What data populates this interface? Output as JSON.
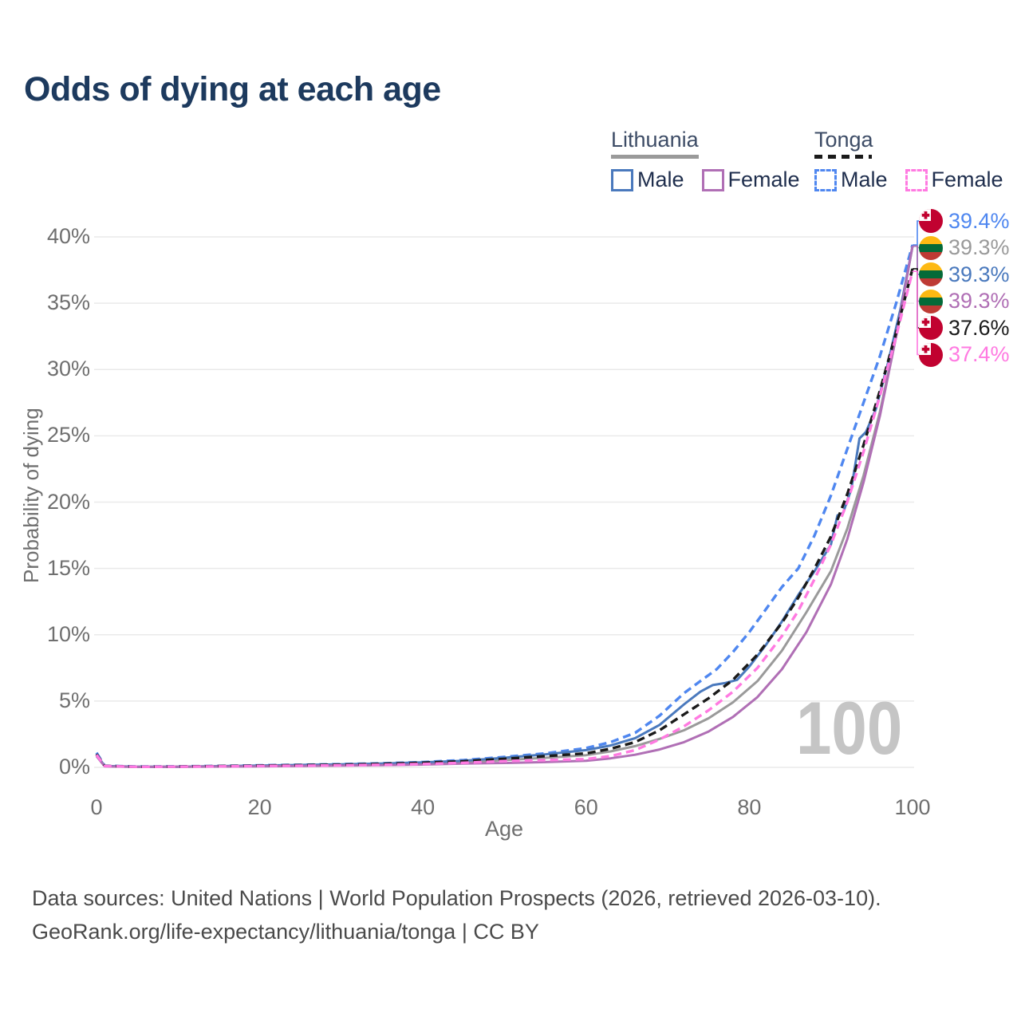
{
  "title": "Odds of dying at each age",
  "watermark": "100",
  "legend": {
    "groups": [
      {
        "country": "Lithuania",
        "line_style": "solid",
        "underline_color": "#9a9a9a",
        "items": [
          {
            "label": "Male",
            "color": "#4a79bd"
          },
          {
            "label": "Female",
            "color": "#b06fb5"
          }
        ]
      },
      {
        "country": "Tonga",
        "line_style": "dashed",
        "underline_color": "#1a1a1a",
        "items": [
          {
            "label": "Male",
            "color": "#4f87f0"
          },
          {
            "label": "Female",
            "color": "#ff7ae1"
          }
        ]
      }
    ]
  },
  "footer": {
    "line1": "Data sources: United Nations | World Population Prospects (2026, retrieved 2026-03-10).",
    "line2": "GeoRank.org/life-expectancy/lithuania/tonga | CC BY"
  },
  "chart_data": {
    "type": "line",
    "title": "Odds of dying at each age",
    "xlabel": "Age",
    "ylabel": "Probability of dying",
    "xlim": [
      0,
      100
    ],
    "ylim": [
      0,
      41.5
    ],
    "grid": "horizontal",
    "legend_position": "top-right",
    "x_ticks": [
      0,
      20,
      40,
      60,
      80,
      100
    ],
    "y_ticks": [
      {
        "value": 0,
        "label": "0%"
      },
      {
        "value": 5,
        "label": "5%"
      },
      {
        "value": 10,
        "label": "10%"
      },
      {
        "value": 15,
        "label": "15%"
      },
      {
        "value": 20,
        "label": "20%"
      },
      {
        "value": 25,
        "label": "25%"
      },
      {
        "value": 30,
        "label": "30%"
      },
      {
        "value": 35,
        "label": "35%"
      },
      {
        "value": 40,
        "label": "40%"
      }
    ],
    "hovered_age": "100",
    "series": [
      {
        "name": "Tonga Male",
        "country": "Tonga",
        "sex": "Male",
        "color": "#4f87f0",
        "dashed": true,
        "flag": "tonga",
        "end_label": "39.4%",
        "points": [
          [
            0,
            1.1
          ],
          [
            1,
            0.12
          ],
          [
            5,
            0.06
          ],
          [
            10,
            0.07
          ],
          [
            15,
            0.1
          ],
          [
            20,
            0.15
          ],
          [
            25,
            0.19
          ],
          [
            30,
            0.24
          ],
          [
            35,
            0.3
          ],
          [
            40,
            0.4
          ],
          [
            45,
            0.55
          ],
          [
            50,
            0.78
          ],
          [
            55,
            1.05
          ],
          [
            60,
            1.45
          ],
          [
            63,
            1.9
          ],
          [
            66,
            2.6
          ],
          [
            69,
            3.9
          ],
          [
            72,
            5.6
          ],
          [
            74,
            6.5
          ],
          [
            76,
            7.4
          ],
          [
            78,
            8.7
          ],
          [
            80,
            10.2
          ],
          [
            82,
            11.9
          ],
          [
            84,
            13.6
          ],
          [
            86,
            15.0
          ],
          [
            88,
            17.5
          ],
          [
            90,
            20.5
          ],
          [
            92,
            24.0
          ],
          [
            94,
            27.5
          ],
          [
            96,
            31.0
          ],
          [
            98,
            35.0
          ],
          [
            100,
            39.4
          ]
        ]
      },
      {
        "name": "Lithuania Both sexes",
        "country": "Lithuania",
        "sex": "Both",
        "color": "#9a9a9a",
        "dashed": false,
        "flag": "lithuania",
        "end_label": "39.3%",
        "points": [
          [
            0,
            0.9
          ],
          [
            1,
            0.09
          ],
          [
            5,
            0.04
          ],
          [
            10,
            0.05
          ],
          [
            15,
            0.08
          ],
          [
            20,
            0.11
          ],
          [
            25,
            0.14
          ],
          [
            30,
            0.18
          ],
          [
            35,
            0.23
          ],
          [
            40,
            0.3
          ],
          [
            45,
            0.4
          ],
          [
            50,
            0.55
          ],
          [
            55,
            0.72
          ],
          [
            60,
            0.92
          ],
          [
            63,
            1.2
          ],
          [
            66,
            1.6
          ],
          [
            69,
            2.15
          ],
          [
            72,
            2.8
          ],
          [
            75,
            3.7
          ],
          [
            78,
            4.9
          ],
          [
            81,
            6.5
          ],
          [
            84,
            8.8
          ],
          [
            87,
            11.7
          ],
          [
            90,
            14.8
          ],
          [
            92,
            18.0
          ],
          [
            94,
            22.0
          ],
          [
            96,
            26.8
          ],
          [
            98,
            32.5
          ],
          [
            100,
            39.3
          ]
        ]
      },
      {
        "name": "Lithuania Male",
        "country": "Lithuania",
        "sex": "Male",
        "color": "#4a79bd",
        "dashed": false,
        "flag": "lithuania",
        "end_label": "39.3%",
        "points": [
          [
            0,
            0.95
          ],
          [
            1,
            0.1
          ],
          [
            5,
            0.05
          ],
          [
            10,
            0.05
          ],
          [
            15,
            0.09
          ],
          [
            20,
            0.14
          ],
          [
            25,
            0.18
          ],
          [
            30,
            0.23
          ],
          [
            35,
            0.29
          ],
          [
            40,
            0.37
          ],
          [
            45,
            0.5
          ],
          [
            50,
            0.72
          ],
          [
            55,
            0.98
          ],
          [
            60,
            1.3
          ],
          [
            63,
            1.65
          ],
          [
            66,
            2.2
          ],
          [
            69,
            3.2
          ],
          [
            72,
            4.75
          ],
          [
            74,
            5.7
          ],
          [
            75.5,
            6.2
          ],
          [
            77,
            6.35
          ],
          [
            78.5,
            6.6
          ],
          [
            80,
            7.6
          ],
          [
            82,
            9.2
          ],
          [
            84,
            11.0
          ],
          [
            86,
            13.0
          ],
          [
            88,
            14.8
          ],
          [
            90,
            16.8
          ],
          [
            90.8,
            19.0
          ],
          [
            91.5,
            19.2
          ],
          [
            92.5,
            21.0
          ],
          [
            93.5,
            24.8
          ],
          [
            94.3,
            25.3
          ],
          [
            95.5,
            27.0
          ],
          [
            97,
            30.5
          ],
          [
            98.5,
            34.5
          ],
          [
            100,
            39.3
          ]
        ]
      },
      {
        "name": "Lithuania Female",
        "country": "Lithuania",
        "sex": "Female",
        "color": "#b06fb5",
        "dashed": false,
        "flag": "lithuania",
        "end_label": "39.3%",
        "points": [
          [
            0,
            0.85
          ],
          [
            1,
            0.08
          ],
          [
            5,
            0.03
          ],
          [
            10,
            0.04
          ],
          [
            15,
            0.06
          ],
          [
            20,
            0.08
          ],
          [
            25,
            0.1
          ],
          [
            30,
            0.13
          ],
          [
            35,
            0.16
          ],
          [
            40,
            0.21
          ],
          [
            45,
            0.28
          ],
          [
            50,
            0.33
          ],
          [
            55,
            0.4
          ],
          [
            60,
            0.5
          ],
          [
            63,
            0.68
          ],
          [
            66,
            0.95
          ],
          [
            69,
            1.35
          ],
          [
            72,
            1.9
          ],
          [
            75,
            2.7
          ],
          [
            78,
            3.8
          ],
          [
            81,
            5.3
          ],
          [
            84,
            7.4
          ],
          [
            87,
            10.2
          ],
          [
            90,
            13.8
          ],
          [
            92,
            17.2
          ],
          [
            94,
            21.5
          ],
          [
            96,
            26.5
          ],
          [
            98,
            32.5
          ],
          [
            100,
            39.3
          ]
        ]
      },
      {
        "name": "Tonga Both sexes",
        "country": "Tonga",
        "sex": "Both",
        "color": "#1a1a1a",
        "dashed": true,
        "flag": "tonga",
        "end_label": "37.6%",
        "points": [
          [
            0,
            1.0
          ],
          [
            1,
            0.11
          ],
          [
            5,
            0.05
          ],
          [
            10,
            0.06
          ],
          [
            15,
            0.09
          ],
          [
            20,
            0.13
          ],
          [
            25,
            0.16
          ],
          [
            30,
            0.2
          ],
          [
            35,
            0.26
          ],
          [
            40,
            0.34
          ],
          [
            45,
            0.46
          ],
          [
            50,
            0.64
          ],
          [
            55,
            0.85
          ],
          [
            60,
            1.05
          ],
          [
            63,
            1.4
          ],
          [
            66,
            1.9
          ],
          [
            69,
            2.8
          ],
          [
            72,
            4.0
          ],
          [
            75,
            5.2
          ],
          [
            78,
            6.6
          ],
          [
            81,
            8.5
          ],
          [
            84,
            10.9
          ],
          [
            86,
            12.8
          ],
          [
            88,
            15.0
          ],
          [
            90,
            17.4
          ],
          [
            92,
            20.6
          ],
          [
            94,
            24.3
          ],
          [
            96,
            28.4
          ],
          [
            98,
            32.8
          ],
          [
            100,
            37.6
          ]
        ]
      },
      {
        "name": "Tonga Female",
        "country": "Tonga",
        "sex": "Female",
        "color": "#ff7ae1",
        "dashed": true,
        "flag": "tonga",
        "end_label": "37.4%",
        "points": [
          [
            0,
            0.95
          ],
          [
            1,
            0.1
          ],
          [
            5,
            0.04
          ],
          [
            10,
            0.05
          ],
          [
            15,
            0.07
          ],
          [
            20,
            0.1
          ],
          [
            25,
            0.12
          ],
          [
            30,
            0.15
          ],
          [
            35,
            0.19
          ],
          [
            40,
            0.25
          ],
          [
            45,
            0.34
          ],
          [
            50,
            0.47
          ],
          [
            55,
            0.55
          ],
          [
            60,
            0.62
          ],
          [
            63,
            0.85
          ],
          [
            66,
            1.3
          ],
          [
            69,
            2.1
          ],
          [
            72,
            3.1
          ],
          [
            75,
            4.3
          ],
          [
            78,
            5.7
          ],
          [
            81,
            7.5
          ],
          [
            84,
            9.9
          ],
          [
            86,
            11.8
          ],
          [
            88,
            14.2
          ],
          [
            90,
            16.8
          ],
          [
            92,
            20.0
          ],
          [
            94,
            23.8
          ],
          [
            96,
            28.0
          ],
          [
            98,
            32.5
          ],
          [
            100,
            37.4
          ]
        ]
      }
    ],
    "flag_colors": {
      "lithuania": [
        "#FDB913",
        "#046A38",
        "#BE3A34"
      ],
      "tonga_red": "#C10230",
      "tonga_white": "#ffffff"
    }
  }
}
